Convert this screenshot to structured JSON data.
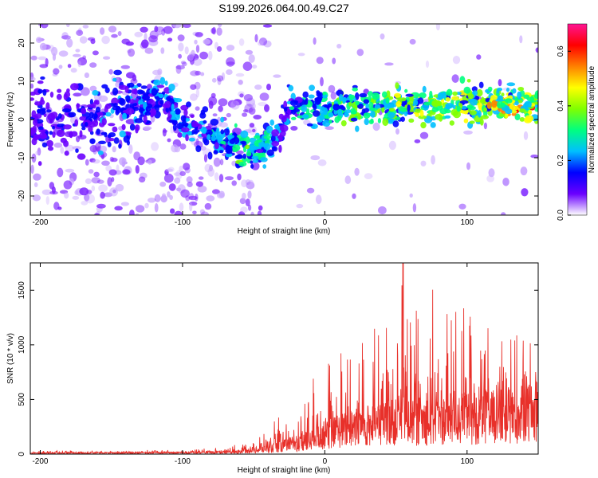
{
  "title": "S199.2026.064.00.49.C27",
  "chart_data": [
    {
      "type": "heatmap",
      "xlabel": "Height of straight line (km)",
      "ylabel": "Frequency (Hz)",
      "xlim": [
        -207,
        150
      ],
      "ylim": [
        -25,
        25
      ],
      "xticks": [
        -200,
        -100,
        0,
        100
      ],
      "xtick_labels": [
        "-200",
        "-100",
        "0",
        "100"
      ],
      "yticks": [
        -20,
        -10,
        0,
        10,
        20
      ],
      "ytick_labels": [
        "-20",
        "-10",
        "0",
        "10",
        "20"
      ],
      "colorbar": {
        "label": "Normalized spectral amplitude",
        "range": [
          0,
          0.7
        ],
        "ticks": [
          0.0,
          0.2,
          0.4,
          0.6
        ],
        "tick_labels": [
          "0.0",
          "0.2",
          "0.4",
          "0.6"
        ],
        "colormap": [
          "#ffffff",
          "#6a00ff",
          "#0000ff",
          "#00bfff",
          "#00ff80",
          "#80ff00",
          "#ffff00",
          "#ff8000",
          "#ff0000",
          "#ff1493"
        ]
      },
      "ridge": {
        "height_km": [
          -207,
          -180,
          -150,
          -130,
          -115,
          -100,
          -90,
          -80,
          -70,
          -60,
          -50,
          -40,
          -32,
          -28,
          -25,
          -20,
          0,
          20,
          40,
          60,
          80,
          100,
          120,
          140,
          150
        ],
        "frequency_hz": [
          0,
          0,
          0,
          3,
          6,
          0,
          -2,
          -4,
          -6,
          -8,
          -8,
          -6,
          -4,
          0,
          4,
          4,
          3,
          3,
          3,
          3,
          4,
          4,
          4,
          4,
          4
        ],
        "peak_amplitude": [
          0.15,
          0.15,
          0.2,
          0.2,
          0.25,
          0.25,
          0.2,
          0.25,
          0.3,
          0.35,
          0.35,
          0.3,
          0.2,
          0.15,
          0.25,
          0.3,
          0.35,
          0.35,
          0.4,
          0.4,
          0.45,
          0.45,
          0.5,
          0.55,
          0.6
        ]
      }
    },
    {
      "type": "line",
      "xlabel": "Height of straight line (km)",
      "ylabel": "SNR (10 * v/v)",
      "xlim": [
        -207,
        150
      ],
      "ylim": [
        0,
        1750
      ],
      "xticks": [
        -200,
        -100,
        0,
        100
      ],
      "xtick_labels": [
        "-200",
        "-100",
        "0",
        "100"
      ],
      "yticks": [
        0,
        500,
        1000,
        1500
      ],
      "ytick_labels": [
        "0",
        "500",
        "1000",
        "1500"
      ],
      "series": [
        {
          "name": "SNR",
          "color": "#e8302a",
          "envelope_x": [
            -207,
            -150,
            -100,
            -70,
            -60,
            -50,
            -40,
            -30,
            -25,
            -20,
            -10,
            0,
            10,
            20,
            30,
            40,
            50,
            55,
            60,
            70,
            80,
            90,
            100,
            110,
            120,
            130,
            140,
            150
          ],
          "envelope_base": [
            10,
            12,
            15,
            20,
            30,
            45,
            60,
            90,
            110,
            120,
            160,
            220,
            260,
            300,
            320,
            340,
            360,
            380,
            360,
            380,
            390,
            400,
            410,
            420,
            420,
            440,
            460,
            480
          ],
          "envelope_peak": [
            30,
            35,
            40,
            60,
            100,
            160,
            200,
            420,
            580,
            520,
            650,
            900,
            1000,
            1050,
            1150,
            1250,
            1380,
            1760,
            1400,
            1450,
            1550,
            1450,
            1300,
            1250,
            1200,
            1150,
            1100,
            1050
          ]
        }
      ]
    }
  ]
}
